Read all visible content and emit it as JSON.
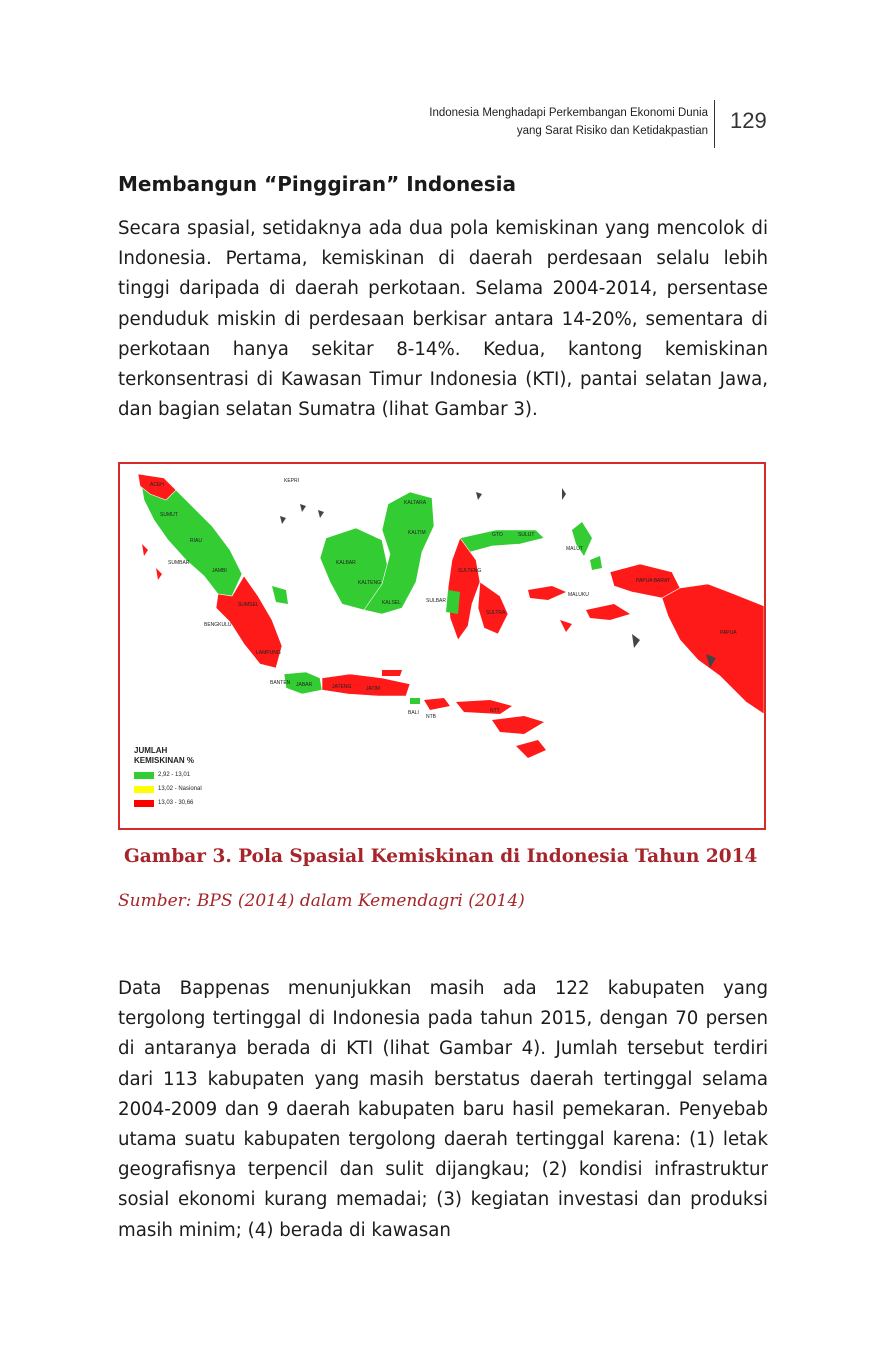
{
  "header": {
    "running_title_line1": "Indonesia Menghadapi Perkembangan Ekonomi Dunia",
    "running_title_line2": "yang Sarat Risiko dan Ketidakpastian",
    "page_number": "129"
  },
  "section": {
    "title": "Membangun “Pinggiran” Indonesia",
    "paragraph1": "Secara spasial, setidaknya ada dua pola kemiskinan yang mencolok di Indonesia. Pertama, kemiskinan di daerah perdesaan selalu lebih tinggi daripada di daerah perkotaan. Selama 2004-2014, persentase penduduk miskin di perdesaan berkisar antara 14-20%, sementara di perkotaan hanya sekitar 8-14%. Kedua, kantong kemiskinan terkonsentrasi di Kawasan Timur Indonesia (KTI), pantai selatan Jawa, dan bagian selatan Sumatra (lihat Gambar 3).",
    "paragraph2": "Data Bappenas menunjukkan masih ada 122 kabupaten yang tergolong tertinggal di Indonesia pada tahun 2015, dengan 70 persen di antaranya berada di KTI (lihat Gambar 4). Jumlah tersebut terdiri dari 113 kabupaten yang masih berstatus daerah tertinggal selama 2004-2009 dan 9 daerah kabupaten baru hasil pemekaran. Penyebab utama suatu kabupaten tergolong daerah tertinggal karena: (1) letak geografisnya terpencil dan sulit dijangkau; (2) kondisi infrastruktur sosial ekonomi kurang memadai; (3) kegiatan investasi dan produksi masih minim; (4) berada di kawasan"
  },
  "figure": {
    "legend_title_line1": "JUMLAH",
    "legend_title_line2": "KEMISKINAN %",
    "legend_items": [
      {
        "label": "2,92 - 13,01",
        "color": "#33cc33"
      },
      {
        "label": "13,02 - Nasional",
        "color": "#ffff00"
      },
      {
        "label": "13,03 - 30,66",
        "color": "#ff0000"
      }
    ],
    "caption": "Gambar 3. Pola Spasial Kemiskinan di Indonesia Tahun 2014",
    "source": "Sumber: BPS (2014) dalam Kemendagri (2014)",
    "map_labels": {
      "aceh": "ACEH",
      "sumut": "SUMUT",
      "kepri": "KEPRI",
      "riau": "RIAU",
      "sumbar": "SUMBAR",
      "jambi": "JAMBI",
      "bengkulu": "BENGKULU",
      "sumsel": "SUMSEL",
      "lampung": "LAMPUNG",
      "kalbar": "KALBAR",
      "kalteng": "KALTENG",
      "kalsel": "KALSEL",
      "kaltim": "KALTIM",
      "kaltara": "KALTARA",
      "sulut": "SULUT",
      "gorontalo": "GTO",
      "sulteng": "SULTENG",
      "sulbar": "SULBAR",
      "sultra": "SULTRA",
      "malut": "MALUT",
      "maluku": "MALUKU",
      "papua_barat": "PAPUA BARAT",
      "papua": "PAPUA",
      "ntb": "NTB",
      "ntt": "NTT",
      "banten": "BANTEN",
      "jabar": "JABAR",
      "jateng": "JATENG",
      "jatim": "JATIM",
      "bali": "BALI"
    }
  }
}
